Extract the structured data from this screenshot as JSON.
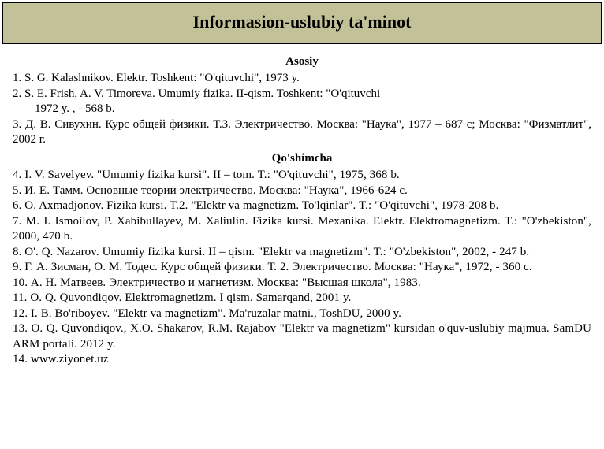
{
  "header": {
    "title": "Informasion-uslubiy ta'minot"
  },
  "sections": {
    "asosiy": {
      "title": "Asosiy",
      "e1": "1. S. G. Kalashnikov. Elektr. Toshkent: \"O'qituvchi\", 1973 y.",
      "e2": "2. S. E. Frish, A. V. Timoreva. Umumiy fizika. II-qism. Toshkent: \"O'qituvchi",
      "e2b": "1972 y. , - 568 b.",
      "e3": "3. Д. В. Сивухин. Курс общей физики. Т.3. Электричество. Москва: \"Наука\", 1977 – 687 с; Москва: \"Физматлит\", 2002 г."
    },
    "qoshimcha": {
      "title": "Qo'shimcha",
      "e4": "4. I. V. Savelyev. \"Umumiy fizika kursi\". II – tom. T.: \"O'qituvchi\", 1975, 368 b.",
      "e5": "5. И. Е. Тамм. Основные теории электричество. Москва: \"Наука\", 1966-624 с.",
      "e6": "6. O. Axmadjonov. Fizika kursi. T.2. \"Elektr va magnetizm. To'lqinlar\". T.: \"O'qituvchi\", 1978-208 b.",
      "e7": "7. M. I. Ismoilov, P. Xabibullayev, M. Xaliulin. Fizika kursi. Mexanika. Elektr. Elektromagnetizm. T.: \"O'zbekiston\", 2000, 470 b.",
      "e8": "8. O'. Q. Nazarov. Umumiy fizika kursi. II – qism. \"Elektr va magnetizm\". T.: \"O'zbekiston\", 2002, - 247 b.",
      "e9": "9. Г. А. Зисман, О. М. Тодес. Курс общей физики. Т. 2. Электричество. Москва: \"Наука\", 1972, - 360 с.",
      "e10": "10.   А. Н. Матвеев. Электричество и магнетизм. Москва: \"Высшая школа\", 1983.",
      "e11": "11.   O. Q. Quvondiqov. Elektromagnetizm. I qism. Samarqand, 2001 y.",
      "e12": "12.   I. B. Bo'riboyev. \"Elektr va magnetizm\". Ma'ruzalar matni., ToshDU, 2000 y.",
      "e13": "13.   O. Q. Quvondiqov., X.O. Shakarov, R.M. Rajabov \"Elektr va magnetizm\" kursidan o'quv-uslubiy majmua. SamDU ARM portali. 2012 y.",
      "e14": "14.   www.ziyonet.uz"
    }
  },
  "styling": {
    "header_bg": "#c3c198",
    "header_border": "#000000",
    "body_bg": "#ffffff",
    "text_color": "#000000",
    "header_fontsize": 22,
    "body_fontsize": 15,
    "font_family": "Times New Roman"
  }
}
